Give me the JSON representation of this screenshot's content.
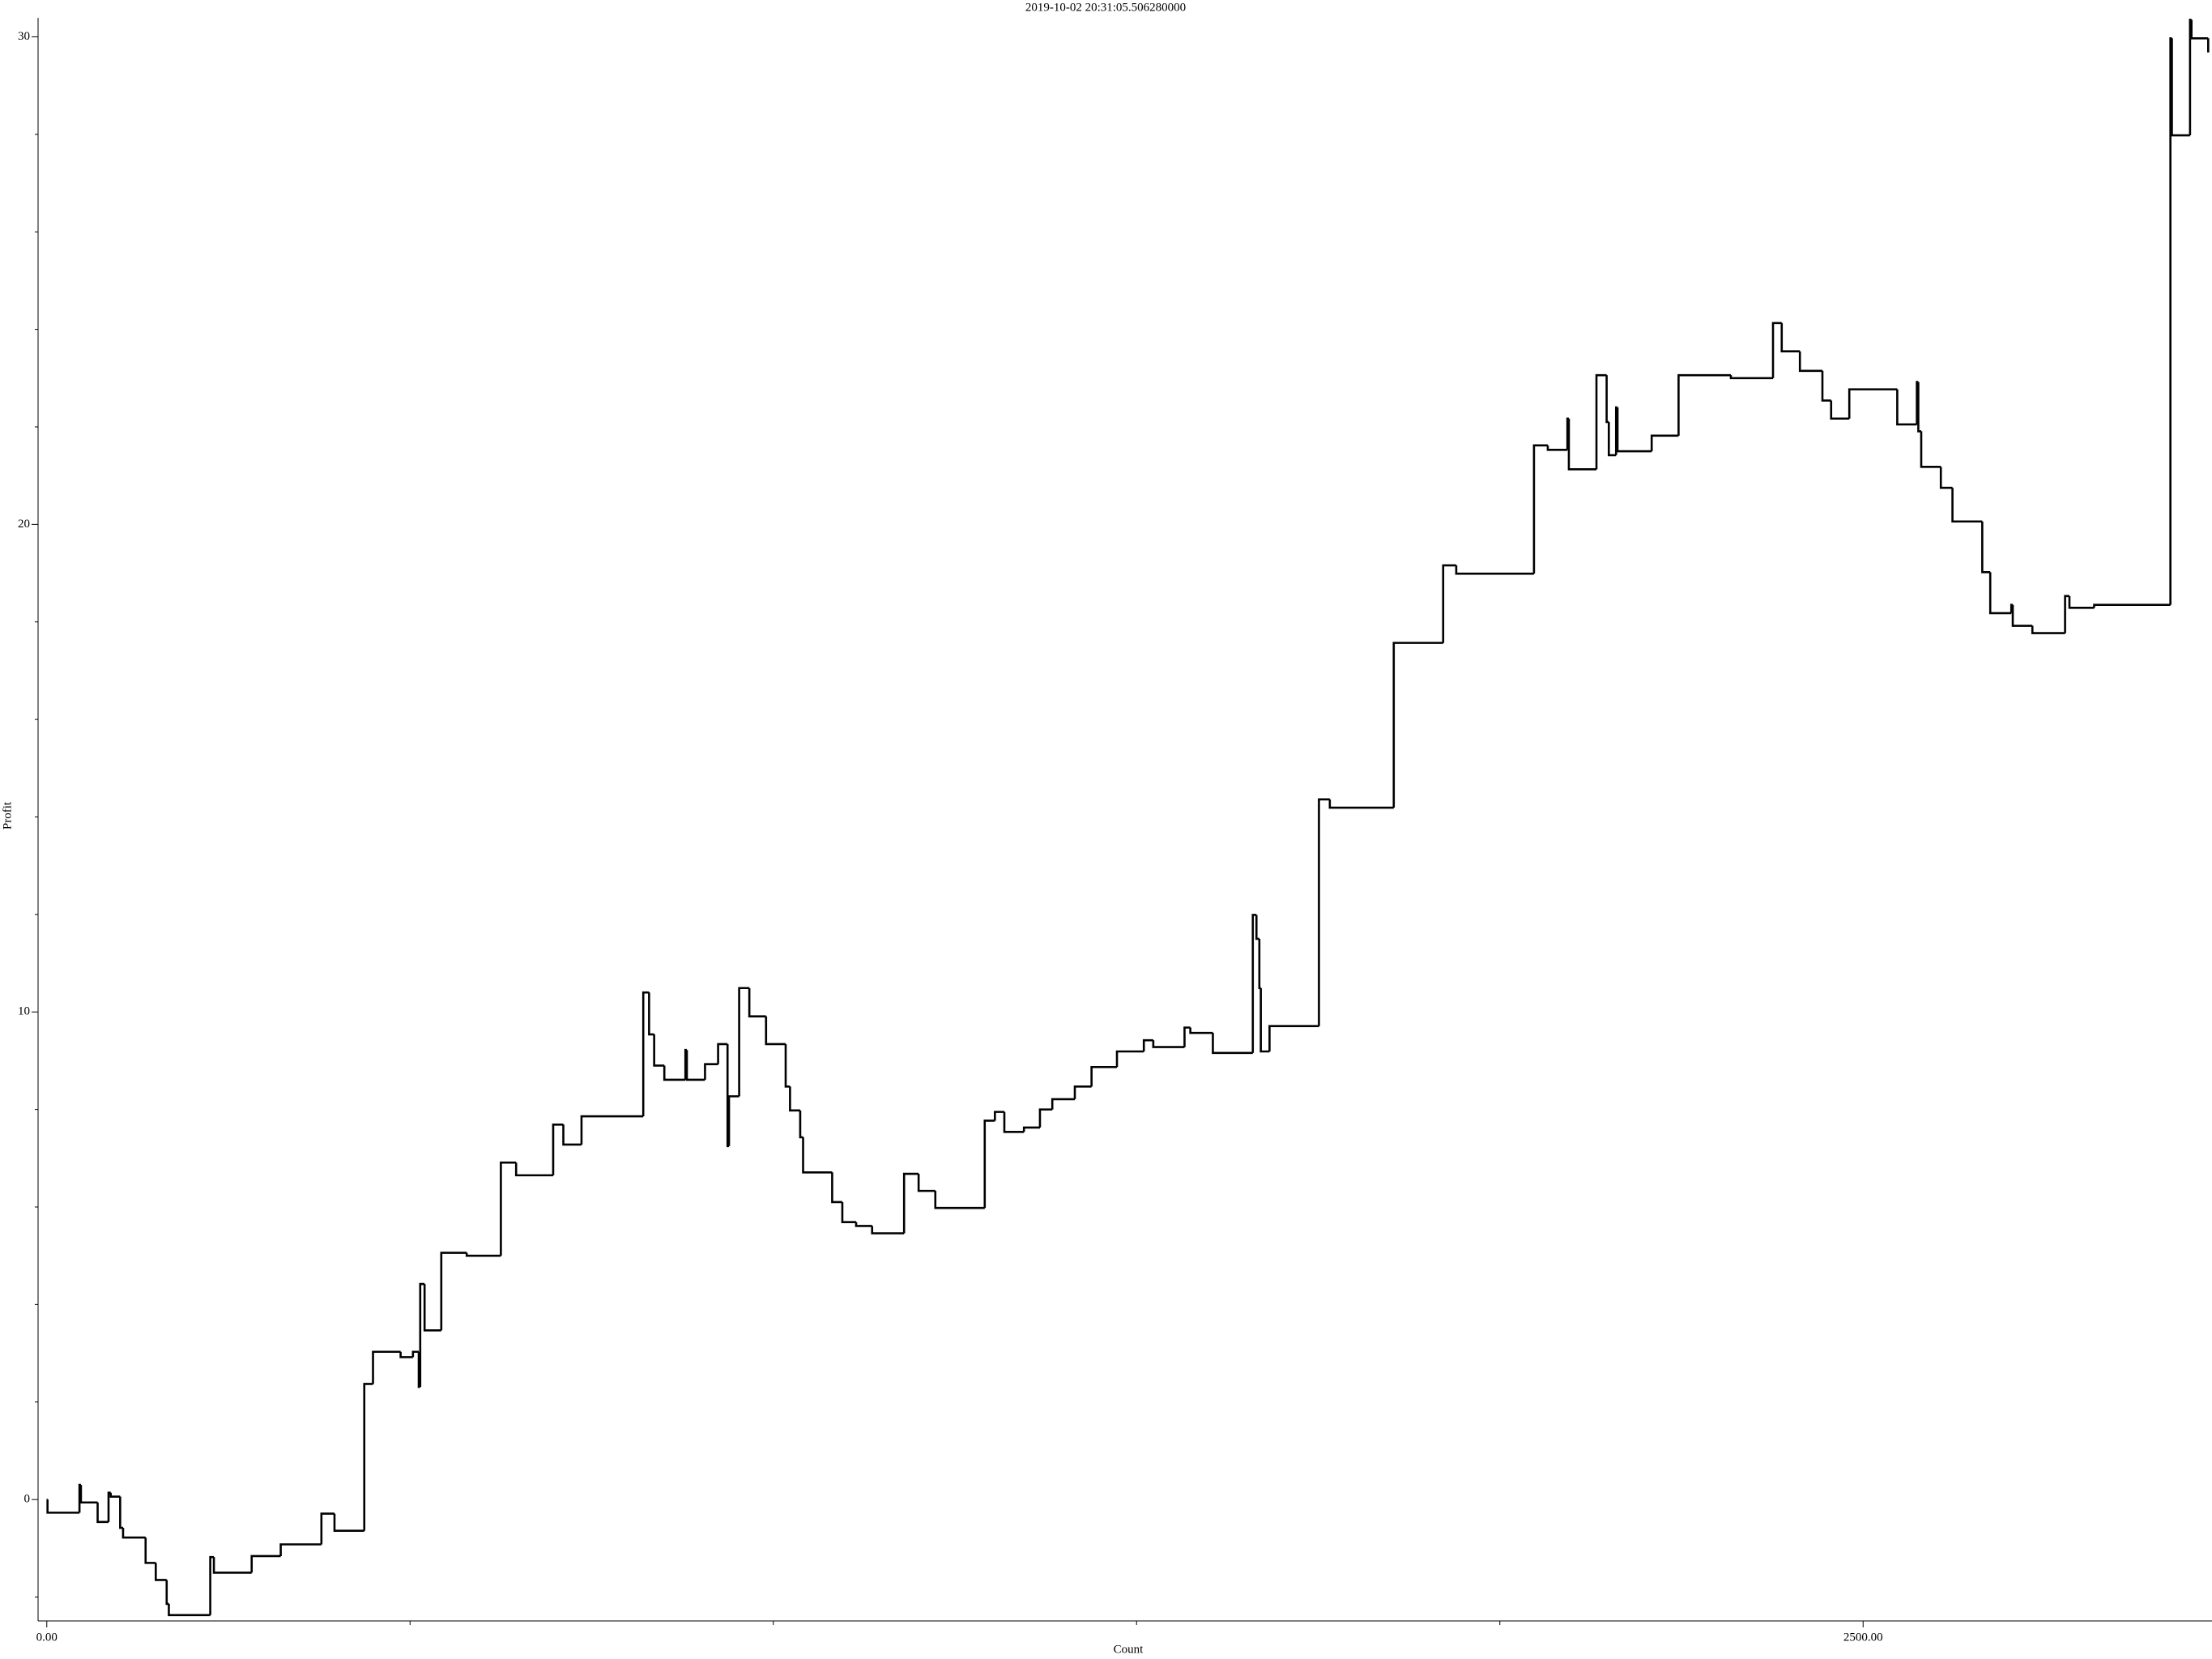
{
  "chart_data": {
    "type": "line",
    "step": "post",
    "title": "2019-10-02 20:31:05.506280000",
    "xlabel": "Count",
    "ylabel": "Profit",
    "color": "#000000",
    "x": [
      0,
      1,
      45,
      47,
      70,
      85,
      88,
      101,
      105,
      136,
      150,
      165,
      168,
      225,
      230,
      282,
      322,
      378,
      396,
      437,
      449,
      487,
      504,
      512,
      514,
      520,
      543,
      578,
      625,
      646,
      697,
      711,
      736,
      821,
      829,
      836,
      850,
      879,
      881,
      906,
      924,
      937,
      939,
      953,
      967,
      990,
      1017,
      1023,
      1037,
      1041,
      1081,
      1095,
      1114,
      1136,
      1180,
      1200,
      1223,
      1291,
      1305,
      1318,
      1345,
      1367,
      1384,
      1415,
      1438,
      1473,
      1510,
      1523,
      1566,
      1574,
      1605,
      1660,
      1665,
      1669,
      1671,
      1683,
      1751,
      1766,
      1854,
      1922,
      1940,
      2047,
      2066,
      2093,
      2095,
      2133,
      2147,
      2150,
      2160,
      2162,
      2209,
      2246,
      2318,
      2376,
      2388,
      2413,
      2444,
      2456,
      2481,
      2547,
      2574,
      2576,
      2580,
      2607,
      2623,
      2664,
      2675,
      2704,
      2706,
      2733,
      2778,
      2784,
      2818,
      2923,
      2925,
      2950,
      2952,
      2975
    ],
    "values": [
      0,
      -0.27,
      0.3,
      -0.06,
      -0.46,
      0.14,
      0.06,
      -0.58,
      -0.78,
      -1.3,
      -1.65,
      -2.14,
      -2.37,
      -1.18,
      -1.5,
      -1.16,
      -0.92,
      -0.29,
      -0.64,
      2.37,
      3.03,
      2.92,
      3.03,
      2.31,
      4.42,
      3.47,
      5.06,
      5.0,
      6.91,
      6.65,
      7.69,
      7.28,
      7.86,
      10.4,
      9.54,
      8.9,
      8.61,
      9.22,
      8.61,
      8.93,
      9.34,
      7.25,
      8.27,
      10.49,
      9.91,
      9.34,
      8.47,
      7.98,
      7.43,
      6.71,
      6.1,
      5.69,
      5.61,
      5.46,
      6.68,
      6.33,
      5.98,
      7.77,
      7.95,
      7.54,
      7.63,
      8.0,
      8.21,
      8.47,
      8.87,
      9.19,
      9.42,
      9.28,
      9.68,
      9.57,
      9.16,
      11.99,
      11.5,
      10.49,
      9.19,
      9.71,
      14.36,
      14.19,
      17.57,
      19.16,
      18.99,
      21.62,
      21.53,
      22.17,
      21.13,
      23.06,
      22.1,
      21.42,
      22.4,
      21.5,
      21.82,
      23.06,
      23.0,
      24.13,
      23.55,
      23.15,
      22.54,
      22.17,
      22.77,
      22.05,
      22.92,
      21.91,
      21.18,
      20.75,
      20.06,
      19.02,
      18.18,
      18.35,
      17.92,
      17.77,
      18.53,
      18.29,
      18.35,
      29.97,
      27.98,
      30.35,
      29.97,
      29.68
    ],
    "xlim": [
      -12,
      2978
    ],
    "ylim": [
      -2.49,
      30.38
    ],
    "xticks": [
      {
        "value": 0,
        "label": "0.00"
      },
      {
        "value": 2500,
        "label": "2500.00"
      }
    ],
    "xminor_ticks": [
      500,
      1000,
      1500,
      2000
    ],
    "yticks": [
      0,
      10,
      20,
      30
    ],
    "yminor_ticks": [
      -2,
      2,
      4,
      6,
      8,
      12,
      14,
      16,
      18,
      22,
      24,
      26,
      28
    ]
  }
}
